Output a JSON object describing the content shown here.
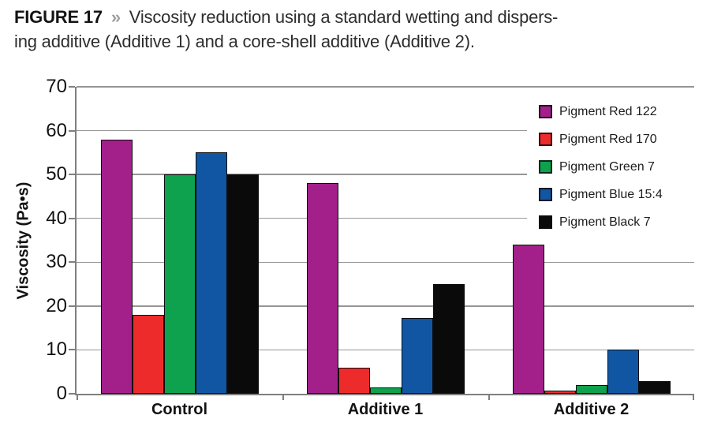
{
  "figure": {
    "label": "FIGURE 17",
    "separator": "»",
    "caption_line1": "Viscosity reduction using a standard wetting and dispers-",
    "caption_line2": "ing additive (Additive 1) and a core-shell additive (Additive 2)."
  },
  "chart_data": {
    "type": "bar",
    "title": "",
    "categories": [
      "Control",
      "Additive 1",
      "Additive 2"
    ],
    "series": [
      {
        "name": "Pigment Red 122",
        "color": "#a3208b",
        "values": [
          58,
          48,
          34
        ]
      },
      {
        "name": "Pigment Red 170",
        "color": "#ee2b2b",
        "values": [
          18,
          6,
          0.8
        ]
      },
      {
        "name": "Pigment Green 7",
        "color": "#0ea24f",
        "values": [
          50,
          1.5,
          2
        ]
      },
      {
        "name": "Pigment Blue 15:4",
        "color": "#1156a3",
        "values": [
          55,
          17.3,
          10
        ]
      },
      {
        "name": "Pigment Black 7",
        "color": "#0a0a0a",
        "values": [
          50,
          25,
          2.8
        ]
      }
    ],
    "xlabel": "",
    "ylabel": "Viscosity (Pa•s)",
    "ylim": [
      0,
      70
    ],
    "ytick_step": 10,
    "grid": true,
    "legend_position": "upper right"
  },
  "colors": {
    "gridline": "#8f8f8f",
    "axis": "#7f7f7f",
    "bar_border": "#0d0d0d",
    "caption_text": "#2d2d2d",
    "figure_label": "#141414",
    "separator": "#9e9e9e",
    "background": "#ffffff"
  }
}
